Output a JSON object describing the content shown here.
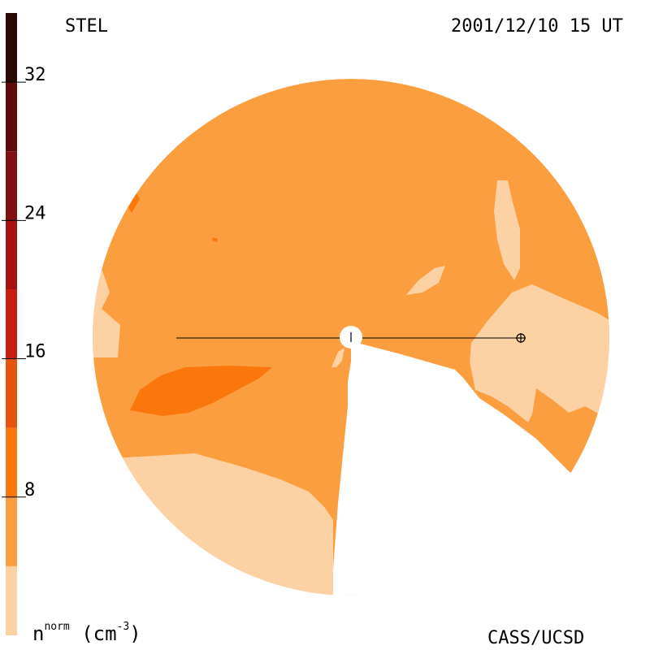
{
  "header": {
    "instrument": "STEL",
    "datetime": "2001/12/10 15 UT"
  },
  "footer": {
    "credit": "CASS/UCSD"
  },
  "colorbar": {
    "label_base": "n",
    "label_sup": "norm",
    "label_units_open": "(cm",
    "label_units_sup": "-3",
    "label_units_close": ")",
    "range": [
      0,
      36
    ],
    "ticks": [
      8,
      16,
      24,
      32
    ],
    "bins": [
      {
        "from": 0,
        "to": 4,
        "color": "#fcd1a3"
      },
      {
        "from": 4,
        "to": 8,
        "color": "#fb9e3f"
      },
      {
        "from": 8,
        "to": 12,
        "color": "#fc770b"
      },
      {
        "from": 12,
        "to": 16,
        "color": "#e55510"
      },
      {
        "from": 16,
        "to": 20,
        "color": "#c81d10"
      },
      {
        "from": 20,
        "to": 24,
        "color": "#a51210"
      },
      {
        "from": 24,
        "to": 28,
        "color": "#821010"
      },
      {
        "from": 28,
        "to": 32,
        "color": "#5f0b0b"
      },
      {
        "from": 32,
        "to": 36,
        "color": "#2a0705"
      }
    ]
  },
  "chart_data": {
    "type": "heatmap",
    "title": "STEL 2001/12/10 15 UT",
    "quantity": "n^norm (cm^-3)",
    "colorbar_range": [
      0,
      36
    ],
    "colorbar_ticks": [
      8,
      16,
      24,
      32
    ],
    "field_levels": [
      {
        "level": "0-4",
        "color": "#fcd1a3"
      },
      {
        "level": "4-8",
        "color": "#fb9e3f"
      },
      {
        "level": "8-12",
        "color": "#fc770b"
      }
    ],
    "background_level": "4-8"
  }
}
